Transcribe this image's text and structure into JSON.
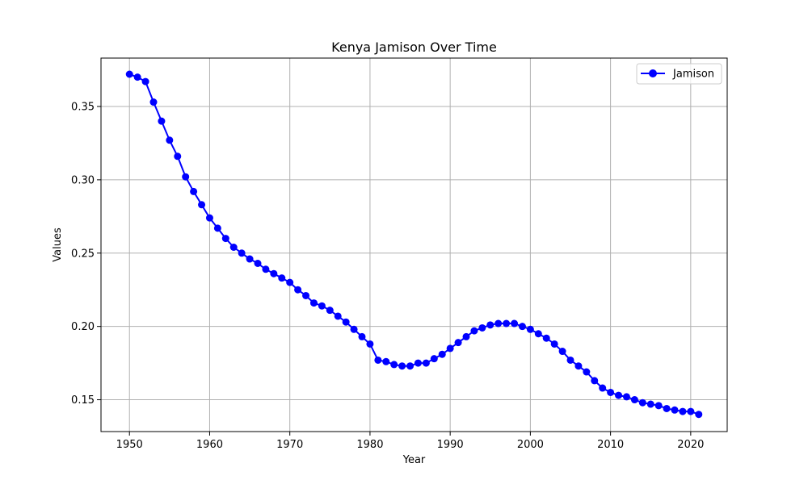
{
  "chart_data": {
    "type": "line",
    "title": "Kenya Jamison Over Time",
    "xlabel": "Year",
    "ylabel": "Values",
    "xlim": [
      1946.45,
      2024.55
    ],
    "ylim": [
      0.1283,
      0.383
    ],
    "xticks": [
      1950,
      1960,
      1970,
      1980,
      1990,
      2000,
      2010,
      2020
    ],
    "yticks": [
      0.15,
      0.2,
      0.25,
      0.3,
      0.35
    ],
    "ytick_labels": [
      "0.15",
      "0.20",
      "0.25",
      "0.30",
      "0.35"
    ],
    "grid": true,
    "legend_position": "top-right",
    "series": [
      {
        "name": "Jamison",
        "color": "#0000ff",
        "marker": "circle",
        "x": [
          1950,
          1951,
          1952,
          1953,
          1954,
          1955,
          1956,
          1957,
          1958,
          1959,
          1960,
          1961,
          1962,
          1963,
          1964,
          1965,
          1966,
          1967,
          1968,
          1969,
          1970,
          1971,
          1972,
          1973,
          1974,
          1975,
          1976,
          1977,
          1978,
          1979,
          1980,
          1981,
          1982,
          1983,
          1984,
          1985,
          1986,
          1987,
          1988,
          1989,
          1990,
          1991,
          1992,
          1993,
          1994,
          1995,
          1996,
          1997,
          1998,
          1999,
          2000,
          2001,
          2002,
          2003,
          2004,
          2005,
          2006,
          2007,
          2008,
          2009,
          2010,
          2011,
          2012,
          2013,
          2014,
          2015,
          2016,
          2017,
          2018,
          2019,
          2020,
          2021
        ],
        "values": [
          0.372,
          0.37,
          0.367,
          0.353,
          0.34,
          0.327,
          0.316,
          0.302,
          0.292,
          0.283,
          0.274,
          0.267,
          0.26,
          0.254,
          0.25,
          0.246,
          0.243,
          0.239,
          0.236,
          0.233,
          0.23,
          0.225,
          0.221,
          0.216,
          0.214,
          0.211,
          0.207,
          0.203,
          0.198,
          0.193,
          0.188,
          0.177,
          0.176,
          0.174,
          0.173,
          0.173,
          0.175,
          0.175,
          0.178,
          0.181,
          0.185,
          0.189,
          0.193,
          0.197,
          0.199,
          0.201,
          0.202,
          0.202,
          0.202,
          0.2,
          0.198,
          0.195,
          0.192,
          0.188,
          0.183,
          0.177,
          0.173,
          0.169,
          0.163,
          0.158,
          0.155,
          0.153,
          0.152,
          0.15,
          0.148,
          0.147,
          0.146,
          0.144,
          0.143,
          0.142,
          0.142,
          0.14
        ]
      }
    ]
  }
}
